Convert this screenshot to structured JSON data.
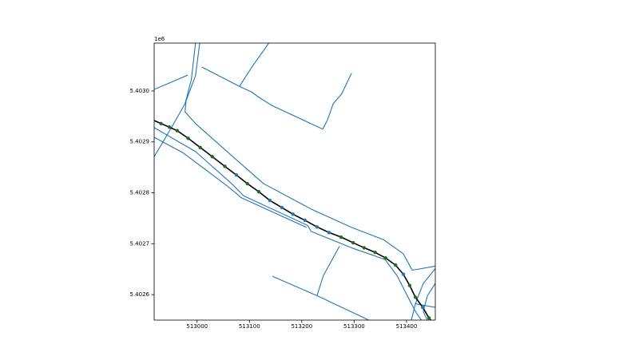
{
  "chart_data": {
    "type": "line",
    "y_offset_label": "1e6",
    "xlim": [
      512918,
      513455
    ],
    "ylim": [
      5.40255,
      5.403094
    ],
    "xticks": [
      513000,
      513100,
      513200,
      513300,
      513400
    ],
    "yticks": [
      {
        "value": 5.4026,
        "label": "5.4026"
      },
      {
        "value": 5.4027,
        "label": "5.4027"
      },
      {
        "value": 5.4028,
        "label": "5.4028"
      },
      {
        "value": 5.4029,
        "label": "5.4029"
      },
      {
        "value": 5.403,
        "label": "5.4030"
      }
    ],
    "series": [
      {
        "style": "line",
        "color": "#1f77b4",
        "x": [
          512918,
          512951,
          512977,
          512989,
          512997
        ],
        "y": [
          5.402871,
          5.402928,
          5.402975,
          5.403022,
          5.403094
        ]
      },
      {
        "style": "line",
        "color": "#1f77b4",
        "x": [
          513005,
          512997,
          512979,
          512977,
          512997,
          513066,
          513127,
          513218,
          513295,
          513356,
          513394,
          513411,
          513455
        ],
        "y": [
          5.403094,
          5.40303,
          5.402981,
          5.402959,
          5.402936,
          5.402873,
          5.402818,
          5.402768,
          5.402732,
          5.402708,
          5.40268,
          5.402648,
          5.402656
        ]
      },
      {
        "style": "line",
        "color": "#1f77b4",
        "x": [
          512918,
          512997,
          513066,
          513089,
          513211,
          513218,
          513295,
          513359,
          513382,
          513417,
          513429
        ],
        "y": [
          5.402928,
          5.402881,
          5.402818,
          5.402794,
          5.402736,
          5.402724,
          5.402692,
          5.402669,
          5.402637,
          5.402567,
          5.402549
        ]
      },
      {
        "style": "line",
        "color": "#1f77b4",
        "x": [
          512918,
          512974,
          513058,
          513085,
          513209
        ],
        "y": [
          5.402909,
          5.402878,
          5.402813,
          5.40279,
          5.402732
        ]
      },
      {
        "style": "line",
        "color": "#1f77b4",
        "x": [
          513009,
          513081,
          513104,
          513119,
          513142,
          513240,
          513249,
          513260,
          513276,
          513295
        ],
        "y": [
          5.403047,
          5.403009,
          5.402998,
          5.402987,
          5.402972,
          5.402925,
          5.402943,
          5.402975,
          5.402994,
          5.403035
        ]
      },
      {
        "style": "line",
        "color": "#1f77b4",
        "x": [
          513081,
          513104,
          513137
        ],
        "y": [
          5.403009,
          5.403046,
          5.403094
        ]
      },
      {
        "style": "line",
        "color": "#1f77b4",
        "x": [
          512918,
          512982
        ],
        "y": [
          5.403003,
          5.403031
        ]
      },
      {
        "style": "line",
        "color": "#1f77b4",
        "x": [
          513144,
          513229,
          513330
        ],
        "y": [
          5.402636,
          5.402598,
          5.402549
        ]
      },
      {
        "style": "line",
        "color": "#1f77b4",
        "x": [
          513229,
          513241,
          513272
        ],
        "y": [
          5.402598,
          5.402637,
          5.402695
        ]
      },
      {
        "style": "line",
        "color": "#1f77b4",
        "x": [
          513455,
          513432,
          513417,
          513409
        ],
        "y": [
          5.402651,
          5.402622,
          5.402582,
          5.402549
        ]
      },
      {
        "style": "line",
        "color": "#1f77b4",
        "x": [
          513455,
          513440,
          513432,
          513440
        ],
        "y": [
          5.402622,
          5.402598,
          5.402567,
          5.402549
        ]
      },
      {
        "style": "line",
        "color": "#1f77b4",
        "x": [
          513417,
          513455
        ],
        "y": [
          5.402582,
          5.402575
        ]
      },
      {
        "style": "line",
        "color": "#000000",
        "width": 1.6,
        "x": [
          512918,
          512931,
          512947,
          512962,
          512983,
          513006,
          513029,
          513053,
          513075,
          513096,
          513118,
          513139,
          513162,
          513183,
          513206,
          513229,
          513252,
          513275,
          513298,
          513319,
          513340,
          513360,
          513379,
          513394,
          513406,
          513417,
          513431,
          513443,
          513447
        ],
        "y": [
          5.402942,
          5.402936,
          5.402929,
          5.402922,
          5.402907,
          5.402889,
          5.402871,
          5.402852,
          5.402835,
          5.402818,
          5.402802,
          5.402785,
          5.402771,
          5.402758,
          5.402746,
          5.402733,
          5.402722,
          5.402713,
          5.402702,
          5.402692,
          5.402683,
          5.402672,
          5.402658,
          5.40264,
          5.402618,
          5.402595,
          5.402575,
          5.402554,
          5.402549
        ]
      },
      {
        "style": "markers",
        "color": "#1f77b4",
        "x": [
          513075,
          513139,
          513162,
          513183,
          513206,
          513229,
          513252,
          513394,
          513431
        ],
        "y": [
          5.402835,
          5.402785,
          5.402771,
          5.402758,
          5.402746,
          5.402733,
          5.402722,
          5.40264,
          5.402575
        ]
      },
      {
        "style": "markers",
        "color": "#1e6e1e",
        "x": [
          512931,
          512947,
          512962,
          512983,
          513006,
          513029,
          513053,
          513096,
          513118,
          513275,
          513298,
          513319,
          513340,
          513360,
          513379,
          513406,
          513417,
          513443
        ],
        "y": [
          5.402936,
          5.402929,
          5.402922,
          5.402907,
          5.402889,
          5.402871,
          5.402852,
          5.402818,
          5.402802,
          5.402713,
          5.402702,
          5.402692,
          5.402683,
          5.402672,
          5.402658,
          5.402618,
          5.402595,
          5.402554
        ]
      }
    ]
  }
}
